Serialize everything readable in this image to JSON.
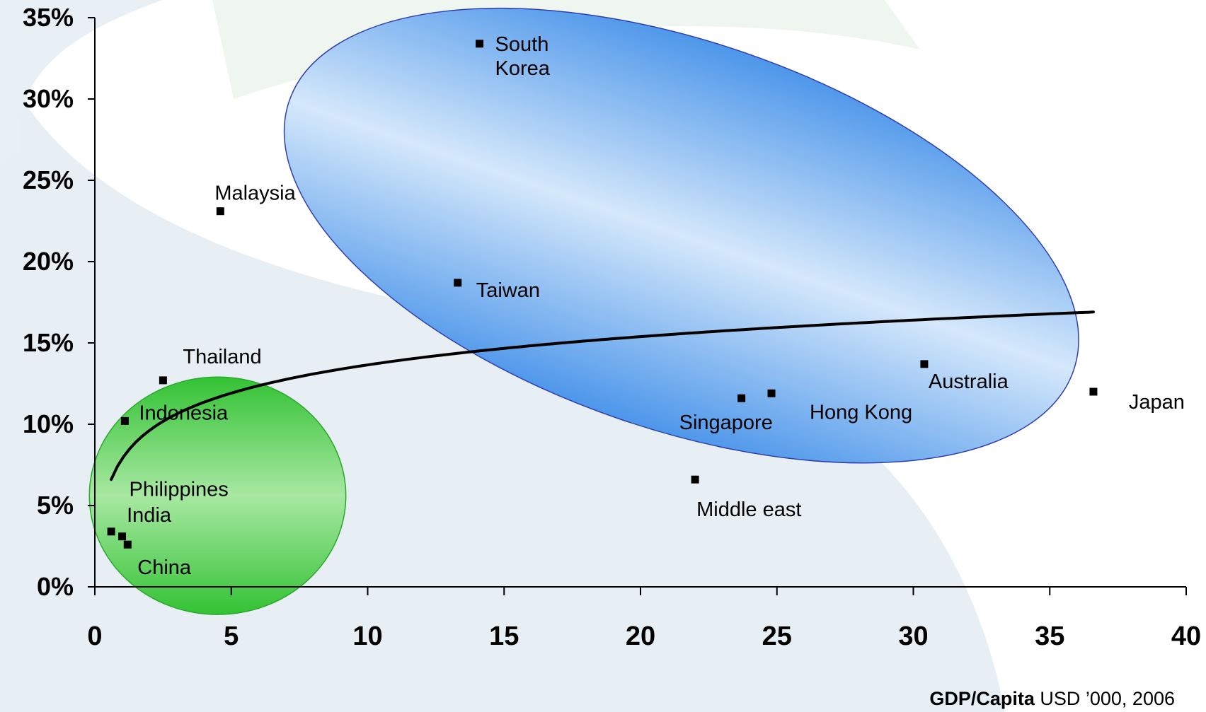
{
  "chart_data": {
    "type": "scatter",
    "title": "",
    "xlabel_bold": "GDP/Capita",
    "xlabel_rest": " USD ’000, 2006",
    "ylabel": "",
    "xlim": [
      0,
      40
    ],
    "ylim": [
      0,
      35
    ],
    "x_ticks": [
      "0",
      "5",
      "10",
      "15",
      "20",
      "25",
      "30",
      "35",
      "40"
    ],
    "y_ticks": [
      "0%",
      "5%",
      "10%",
      "15%",
      "20%",
      "25%",
      "30%",
      "35%"
    ],
    "grid": false,
    "legend": "none",
    "points": [
      {
        "label": "South Korea",
        "label_lines": [
          "South",
          "Korea"
        ],
        "x": 14.1,
        "y": 33.4
      },
      {
        "label": "Malaysia",
        "label_lines": [
          "Malaysia"
        ],
        "x": 4.6,
        "y": 23.1
      },
      {
        "label": "Taiwan",
        "label_lines": [
          "Taiwan"
        ],
        "x": 13.3,
        "y": 18.7
      },
      {
        "label": "Thailand",
        "label_lines": [
          "Thailand"
        ],
        "x": 2.5,
        "y": 12.7
      },
      {
        "label": "Indonesia",
        "label_lines": [
          "Indonesia"
        ],
        "x": 1.1,
        "y": 10.2
      },
      {
        "label": "Philippines",
        "label_lines": [
          "Philippines"
        ],
        "x": 1.0,
        "y": 3.1
      },
      {
        "label": "India",
        "label_lines": [
          "India"
        ],
        "x": 0.6,
        "y": 3.4
      },
      {
        "label": "China",
        "label_lines": [
          "China"
        ],
        "x": 1.2,
        "y": 2.6
      },
      {
        "label": "Singapore",
        "label_lines": [
          "Singapore"
        ],
        "x": 23.7,
        "y": 11.6
      },
      {
        "label": "Hong Kong",
        "label_lines": [
          "Hong Kong"
        ],
        "x": 24.8,
        "y": 11.9
      },
      {
        "label": "Australia",
        "label_lines": [
          "Australia"
        ],
        "x": 30.4,
        "y": 13.7
      },
      {
        "label": "Japan",
        "label_lines": [
          "Japan"
        ],
        "x": 36.6,
        "y": 12.0
      },
      {
        "label": "Middle east",
        "label_lines": [
          "Middle east"
        ],
        "x": 22.0,
        "y": 6.6
      }
    ],
    "trendline": {
      "type": "logarithmic",
      "x_start": 0.6,
      "x_end": 36.6,
      "y_start": 6.6,
      "y_end": 16.9
    },
    "highlight_regions": [
      {
        "name": "blue-cluster",
        "color": "#4d96ea",
        "center": [
          21.5,
          21.6
        ],
        "radii": [
          15.2,
          11.9
        ],
        "rotation_deg": 19
      },
      {
        "name": "green-cluster",
        "color": "#35c23a",
        "center": [
          4.5,
          5.6
        ],
        "radii": [
          4.7,
          7.3
        ],
        "rotation_deg": 0
      }
    ],
    "colors": {
      "blue": "#4d96ea",
      "blue_light": "#d5e8fb",
      "green": "#33c234",
      "green_light": "#a8e8a2",
      "background_swoosh": "#e7eef4",
      "background_swoosh_light": "#eff6f0"
    }
  }
}
